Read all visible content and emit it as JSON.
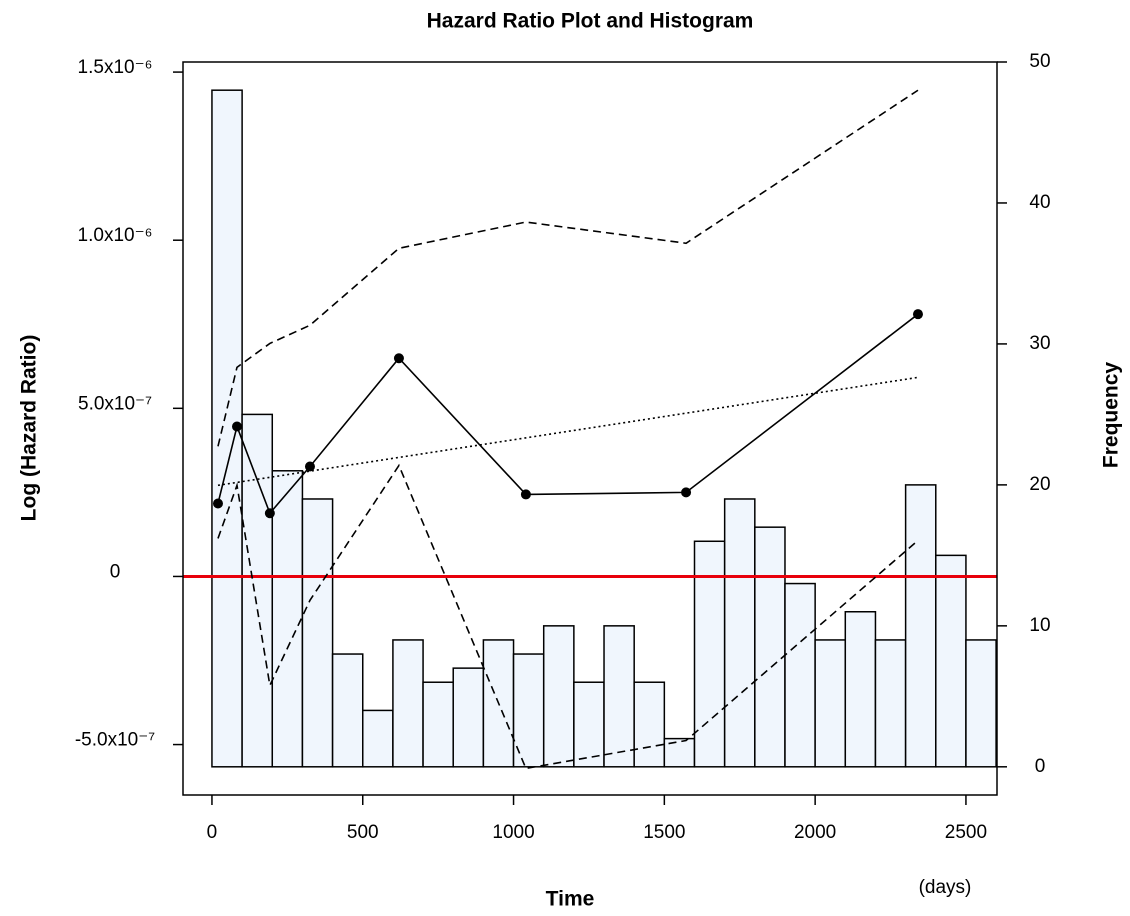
{
  "chart_data": {
    "type": "histogram",
    "title": "Hazard Ratio Plot and Histogram",
    "xlabel": "Time",
    "xunit": "(days)",
    "ylabel": "Log (Hazard Ratio)",
    "y2label": "Frequency",
    "xlim": [
      -96,
      2603
    ],
    "xticks": [
      0,
      500,
      1000,
      1500,
      2000,
      2500
    ],
    "ylim": [
      -6.5e-07,
      1.53e-06
    ],
    "yticks": [
      {
        "value": -5e-07,
        "label": "-5.0x10⁻⁷"
      },
      0,
      {
        "value": 5e-07,
        "label": "5.0x10⁻⁷"
      },
      {
        "value": 1e-06,
        "label": "1.0x10⁻⁶"
      },
      {
        "value": 1.5e-06,
        "label": "1.5x10⁻⁶"
      }
    ],
    "y2lim": [
      -2,
      50
    ],
    "y2ticks": [
      0,
      10,
      20,
      30,
      40,
      50
    ],
    "histogram": {
      "axis": "y2",
      "color": "#f0f6fd",
      "bins": [
        0,
        100,
        200,
        300,
        400,
        500,
        600,
        700,
        800,
        900,
        1000,
        1100,
        1200,
        1300,
        1400,
        1500,
        1600,
        1700,
        1800,
        1900,
        2000,
        2100,
        2200,
        2300,
        2400,
        2500,
        2600
      ],
      "counts": [
        48,
        25,
        21,
        19,
        8,
        4,
        9,
        6,
        7,
        9,
        8,
        10,
        6,
        10,
        6,
        2,
        16,
        19,
        17,
        13,
        9,
        11,
        9,
        20,
        15,
        9
      ]
    },
    "reference_line": {
      "value": 0,
      "color": "#e8000b"
    },
    "series": [
      {
        "style": "solid",
        "markers": true,
        "color": "#000000",
        "x": [
          20,
          83,
          192,
          325,
          620,
          1041,
          1572,
          2341
        ],
        "values": [
          2.17e-07,
          4.46e-07,
          1.88e-07,
          3.27e-07,
          6.49e-07,
          2.44e-07,
          2.5e-07,
          7.8e-07
        ]
      },
      {
        "style": "dashed",
        "markers": false,
        "color": "#000000",
        "x": [
          20,
          83,
          192,
          325,
          620,
          1041,
          1572,
          2341
        ],
        "values": [
          3.87e-07,
          6.22e-07,
          6.93e-07,
          7.47e-07,
          9.76e-07,
          1.054e-06,
          9.91e-07,
          1.446e-06
        ]
      },
      {
        "style": "dashed",
        "markers": false,
        "color": "#000000",
        "x": [
          20,
          83,
          192,
          325,
          620,
          1041,
          1572,
          2341
        ],
        "values": [
          1.13e-07,
          2.71e-07,
          -3.24e-07,
          -7.1e-08,
          3.3e-07,
          -5.71e-07,
          -4.88e-07,
          1.07e-07
        ]
      },
      {
        "style": "dotted",
        "markers": false,
        "color": "#000000",
        "x": [
          20,
          2341
        ],
        "values": [
          2.71e-07,
          5.92e-07
        ]
      }
    ]
  }
}
